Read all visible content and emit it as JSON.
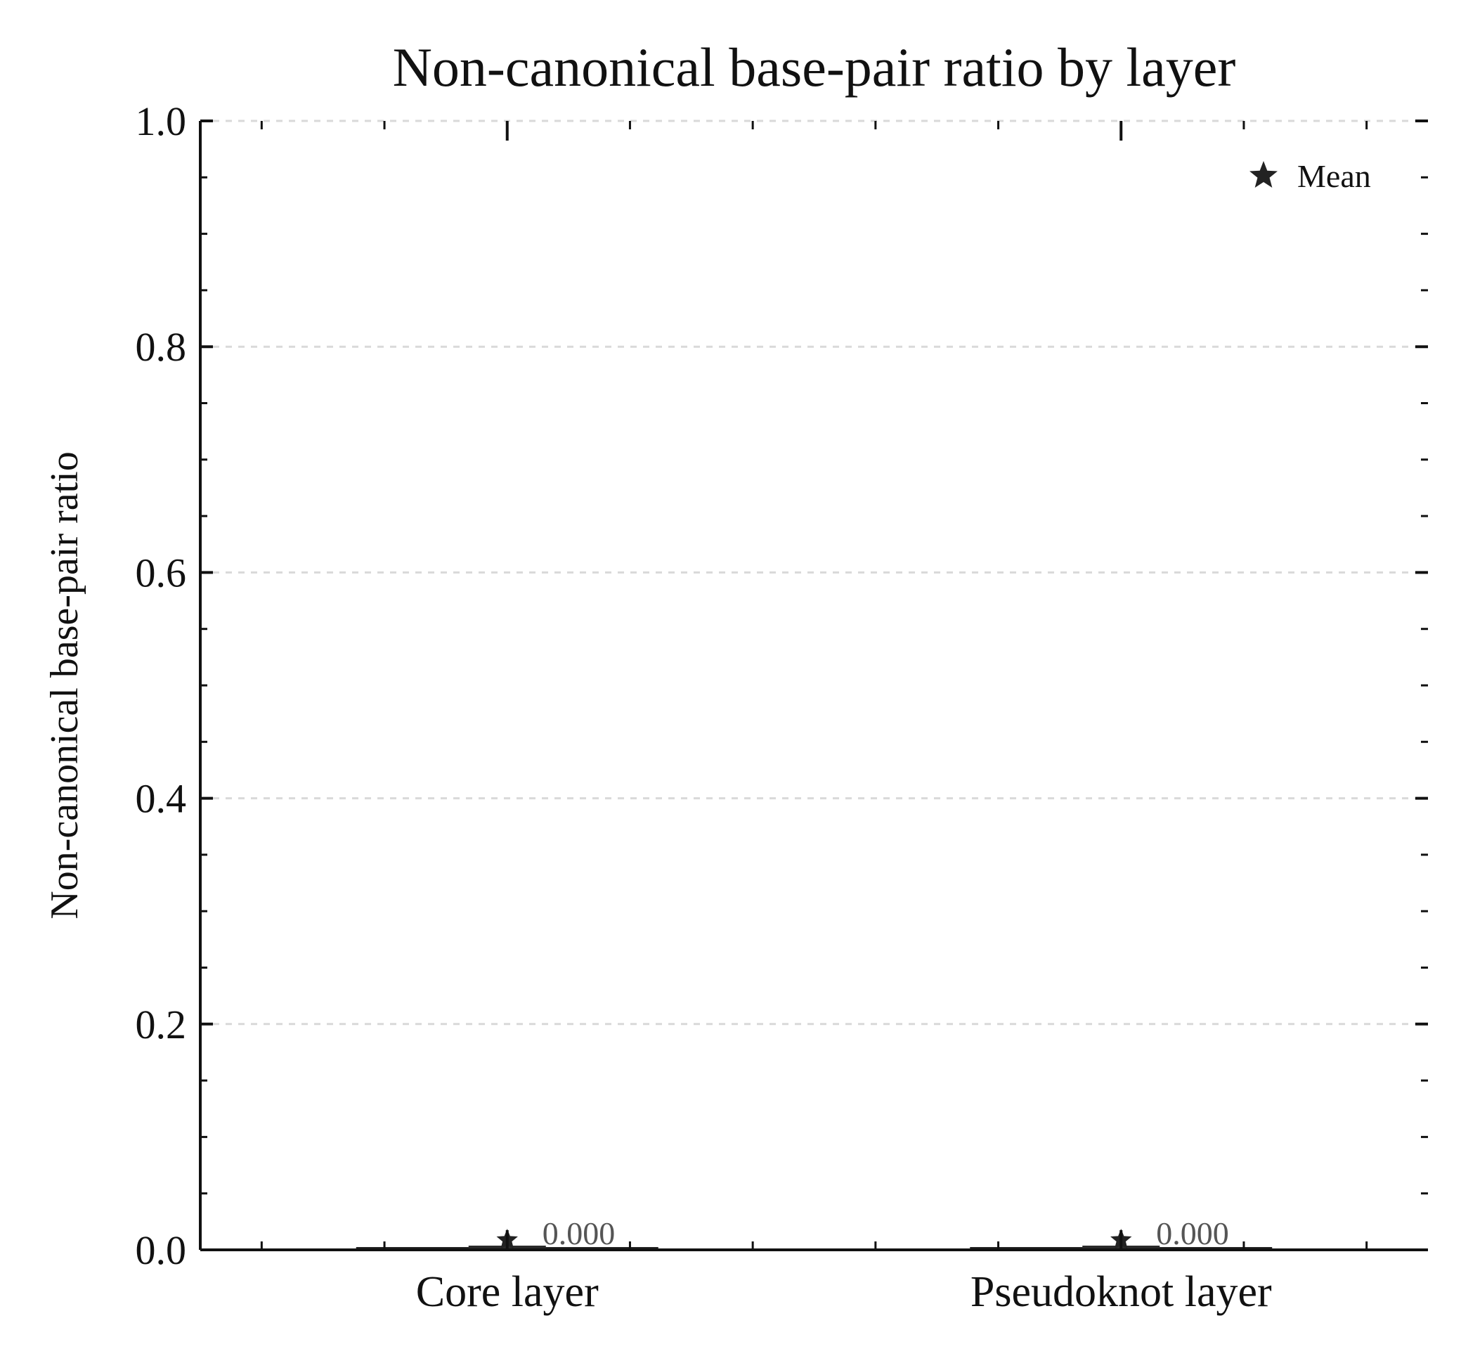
{
  "chart_data": {
    "type": "box",
    "title": "Non-canonical base-pair ratio by layer",
    "xlabel": "",
    "ylabel": "Non-canonical base-pair ratio",
    "categories": [
      "Core layer",
      "Pseudoknot layer"
    ],
    "series": [
      {
        "values": [
          0.0,
          0.0
        ],
        "means": [
          0.0,
          0.0
        ],
        "value_labels": [
          "0.000",
          "0.000"
        ]
      }
    ],
    "ylim": [
      0.0,
      1.0
    ],
    "yticks": [
      0.0,
      0.2,
      0.4,
      0.6,
      0.8,
      1.0
    ],
    "ytick_labels": [
      "0.0",
      "0.2",
      "0.4",
      "0.6",
      "0.8",
      "1.0"
    ],
    "grid": true,
    "legend": {
      "entries": [
        "Mean"
      ],
      "placement": "top-right",
      "marker_icon": "star-icon"
    },
    "colors": {
      "axes": "#111111",
      "grid": "#d9d9d9",
      "mean_marker": "#222222",
      "value_label": "#555555"
    }
  }
}
